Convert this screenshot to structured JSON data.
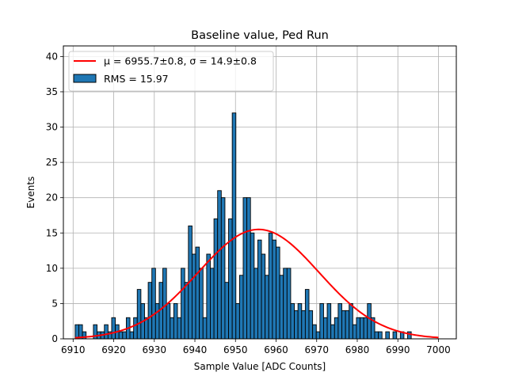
{
  "chart_data": {
    "type": "bar",
    "title": "Baseline value, Ped Run",
    "xlabel": "Sample Value [ADC Counts]",
    "ylabel": "Events",
    "xlim": [
      6907.6,
      7004.4
    ],
    "ylim": [
      0,
      41.5
    ],
    "xticks": [
      6910,
      6920,
      6930,
      6940,
      6950,
      6960,
      6970,
      6980,
      6990,
      7000
    ],
    "yticks": [
      0,
      5,
      10,
      15,
      20,
      25,
      30,
      35,
      40
    ],
    "grid": true,
    "legend_position": "top-left",
    "bin_start": 6910.5,
    "bin_width": 0.9,
    "counts": [
      2,
      2,
      1,
      0,
      0,
      2,
      1,
      1,
      2,
      1,
      3,
      2,
      1,
      1,
      3,
      1,
      3,
      7,
      5,
      3,
      8,
      10,
      5,
      8,
      10,
      5,
      3,
      5,
      3,
      10,
      8,
      16,
      12,
      13,
      10,
      3,
      12,
      10,
      17,
      21,
      20,
      8,
      17,
      32,
      5,
      9,
      20,
      20,
      15,
      10,
      14,
      12,
      9,
      15,
      14,
      13,
      9,
      10,
      10,
      5,
      4,
      5,
      4,
      7,
      4,
      2,
      1,
      5,
      3,
      5,
      2,
      3,
      5,
      4,
      4,
      5,
      2,
      3,
      3,
      3,
      5,
      3,
      1,
      1,
      0,
      1,
      0,
      1,
      0,
      1,
      0,
      1
    ],
    "fit_mu": 6955.7,
    "fit_sigma": 14.9,
    "fit_peak": 15.5,
    "fit_range": [
      6910.5,
      7000
    ],
    "series": [
      {
        "name": "$\\mu=6955.7{\\pm}0.8$, $\\sigma=14.9{\\pm}0.8$",
        "type": "line",
        "color": "#ff0000"
      },
      {
        "name": "RMS = 15.97",
        "type": "bar",
        "color": "#1f77b4"
      }
    ],
    "legend": {
      "fit_mu_text": "μ = 6955.7±0.8, σ = 14.9±0.8",
      "rms_text": "RMS = 15.97"
    }
  },
  "colors": {
    "bar_fill": "#1f77b4",
    "bar_edge": "#000000",
    "fit_line": "#ff0000",
    "grid": "#b0b0b0"
  }
}
